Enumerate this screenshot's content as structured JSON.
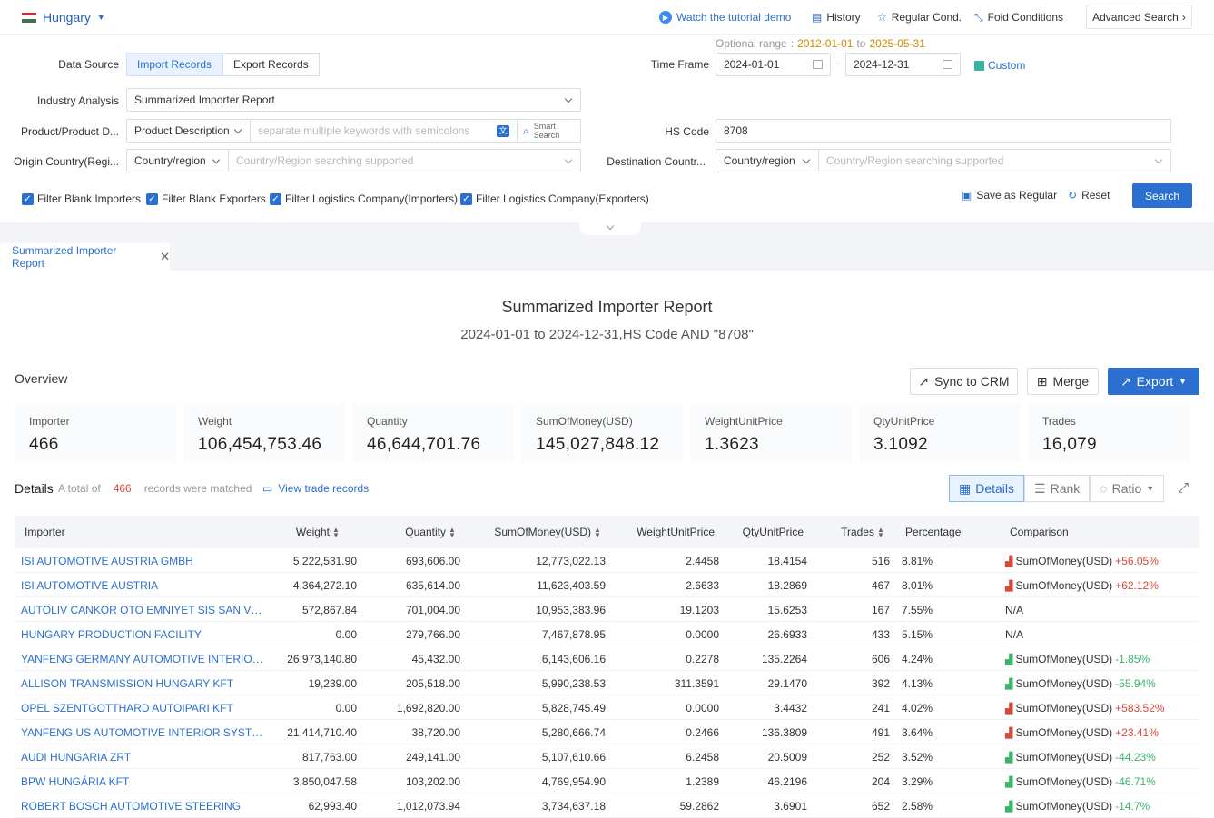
{
  "topbar": {
    "country": "Hungary",
    "tutorial": "Watch the tutorial demo",
    "history": "History",
    "regular_cond": "Regular Cond.",
    "fold_conditions": "Fold Conditions",
    "advanced_search": "Advanced Search"
  },
  "search": {
    "data_source_label": "Data Source",
    "import_records": "Import Records",
    "export_records": "Export Records",
    "optional_range_label": "Optional range",
    "optional_range_start": "2012-01-01",
    "optional_range_to": "to",
    "optional_range_end": "2025-05-31",
    "time_frame_label": "Time Frame",
    "date_from": "2024-01-01",
    "date_to": "2024-12-31",
    "custom": "Custom",
    "industry_label": "Industry Analysis",
    "industry_value": "Summarized Importer Report",
    "product_label": "Product/Product D...",
    "product_type": "Product Description",
    "product_placeholder": "separate multiple keywords with semicolons",
    "smart_search_line1": "Smart",
    "smart_search_line2": "Search",
    "hs_label": "HS Code",
    "hs_value": "8708",
    "origin_label": "Origin Country(Regi...",
    "origin_type": "Country/region",
    "origin_placeholder": "Country/Region searching supported",
    "dest_label": "Destination Countr...",
    "dest_type": "Country/region",
    "dest_placeholder": "Country/Region searching supported",
    "filters": [
      "Filter Blank Importers",
      "Filter Blank Exporters",
      "Filter Logistics Company(Importers)",
      "Filter Logistics Company(Exporters)"
    ],
    "save_regular": "Save as Regular",
    "reset": "Reset",
    "search": "Search"
  },
  "tab": {
    "label": "Summarized Importer Report"
  },
  "report": {
    "title": "Summarized Importer Report",
    "subtitle": "2024-01-01 to 2024-12-31,HS Code AND \"8708\"",
    "overview": "Overview",
    "sync_crm": "Sync to CRM",
    "merge": "Merge",
    "export": "Export",
    "stats": [
      {
        "label": "Importer",
        "value": "466"
      },
      {
        "label": "Weight",
        "value": "106,454,753.46"
      },
      {
        "label": "Quantity",
        "value": "46,644,701.76"
      },
      {
        "label": "SumOfMoney(USD)",
        "value": "145,027,848.12"
      },
      {
        "label": "WeightUnitPrice",
        "value": "1.3623"
      },
      {
        "label": "QtyUnitPrice",
        "value": "3.1092"
      },
      {
        "label": "Trades",
        "value": "16,079"
      }
    ],
    "details": "Details",
    "total_prefix": "A total of",
    "total_count": "466",
    "total_suffix": "records were matched",
    "view_trade": "View trade records",
    "view_details": "Details",
    "view_rank": "Rank",
    "view_ratio": "Ratio"
  },
  "table": {
    "headers": [
      "Importer",
      "Weight",
      "Quantity",
      "SumOfMoney(USD)",
      "WeightUnitPrice",
      "QtyUnitPrice",
      "Trades",
      "Percentage",
      "Comparison"
    ],
    "rows": [
      [
        "ISI AUTOMOTIVE AUSTRIA GMBH",
        "5,222,531.90",
        "693,606.00",
        "12,773,022.13",
        "2.4458",
        "18.4154",
        "516",
        "8.81%",
        "SumOfMoney(USD)",
        "+56.05%",
        "up"
      ],
      [
        "ISI AUTOMOTIVE AUSTRIA",
        "4,364,272.10",
        "635,614.00",
        "11,623,403.59",
        "2.6633",
        "18.2869",
        "467",
        "8.01%",
        "SumOfMoney(USD)",
        "+62.12%",
        "up"
      ],
      [
        "AUTOLIV CANKOR OTO EMNIYET SIS SAN VE TIC A S",
        "572,867.84",
        "701,004.00",
        "10,953,383.96",
        "19.1203",
        "15.6253",
        "167",
        "7.55%",
        "N/A",
        "",
        "na"
      ],
      [
        "HUNGARY PRODUCTION FACILITY",
        "0.00",
        "279,766.00",
        "7,467,878.95",
        "0.0000",
        "26.6933",
        "433",
        "5.15%",
        "N/A",
        "",
        "na"
      ],
      [
        "YANFENG GERMANY AUTOMOTIVE INTERIOR SYSTEMS",
        "26,973,140.80",
        "45,432.00",
        "6,143,606.16",
        "0.2278",
        "135.2264",
        "606",
        "4.24%",
        "SumOfMoney(USD)",
        "-1.85%",
        "down"
      ],
      [
        "ALLISON TRANSMISSION HUNGARY KFT",
        "19,239.00",
        "205,518.00",
        "5,990,238.53",
        "311.3591",
        "29.1470",
        "392",
        "4.13%",
        "SumOfMoney(USD)",
        "-55.94%",
        "down"
      ],
      [
        "OPEL SZENTGOTTHARD AUTOIPARI KFT",
        "0.00",
        "1,692,820.00",
        "5,828,745.49",
        "0.0000",
        "3.4432",
        "241",
        "4.02%",
        "SumOfMoney(USD)",
        "+583.52%",
        "up"
      ],
      [
        "YANFENG US AUTOMOTIVE INTERIOR SYSTEMS",
        "21,414,710.40",
        "38,720.00",
        "5,280,666.74",
        "0.2466",
        "136.3809",
        "491",
        "3.64%",
        "SumOfMoney(USD)",
        "+23.41%",
        "up"
      ],
      [
        "AUDI HUNGARIA ZRT",
        "817,763.00",
        "249,141.00",
        "5,107,610.66",
        "6.2458",
        "20.5009",
        "252",
        "3.52%",
        "SumOfMoney(USD)",
        "-44.23%",
        "down"
      ],
      [
        "BPW HUNGÁRIA KFT",
        "3,850,047.58",
        "103,202.00",
        "4,769,954.90",
        "1.2389",
        "46.2196",
        "204",
        "3.29%",
        "SumOfMoney(USD)",
        "-46.71%",
        "down"
      ],
      [
        "ROBERT BOSCH AUTOMOTIVE STEERING",
        "62,993.40",
        "1,012,073.94",
        "3,734,637.18",
        "59.2862",
        "3.6901",
        "652",
        "2.58%",
        "SumOfMoney(USD)",
        "-14.7%",
        "down"
      ]
    ]
  },
  "colors": {
    "accent": "#2b6fd0",
    "up": "#d24a3a",
    "down": "#3bb36a"
  }
}
